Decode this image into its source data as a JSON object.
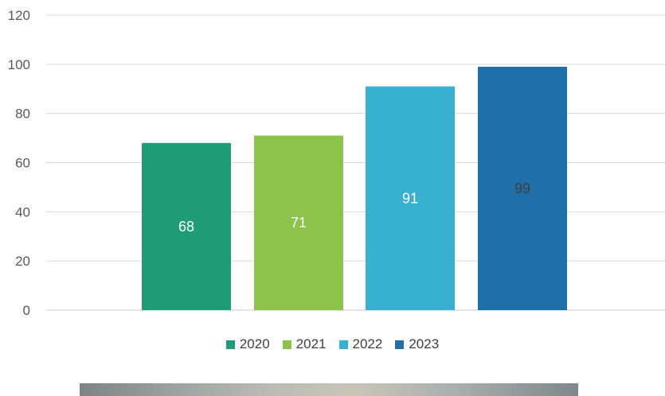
{
  "chart_data": {
    "type": "bar",
    "categories": [
      "2020",
      "2021",
      "2022",
      "2023"
    ],
    "values": [
      68,
      71,
      91,
      99
    ],
    "colors": [
      "#1f9b76",
      "#8cc34a",
      "#38b0d0",
      "#1f6fa8"
    ],
    "label_colors": [
      "#ffffff",
      "#ffffff",
      "#ffffff",
      "#404040"
    ],
    "yticks": [
      0,
      20,
      40,
      60,
      80,
      100,
      120
    ],
    "ylim": [
      0,
      120
    ],
    "title": "",
    "xlabel": "",
    "ylabel": "",
    "grid": true,
    "legend_position": "bottom",
    "legend": [
      "2020",
      "2021",
      "2022",
      "2023"
    ]
  }
}
